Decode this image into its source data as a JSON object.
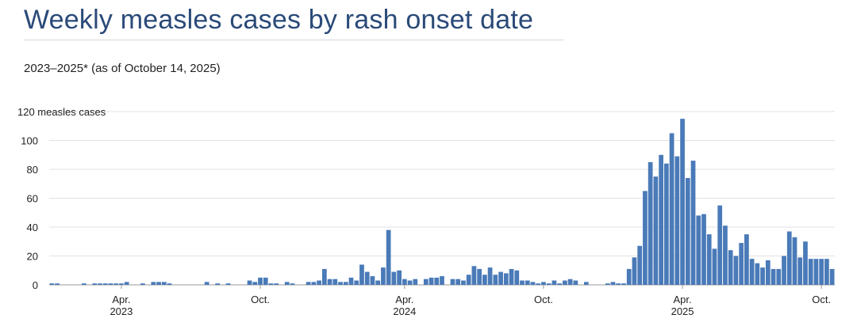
{
  "chart_data": {
    "type": "bar",
    "title": "Weekly measles cases by rash onset date",
    "subtitle": "2023–2025* (as of October 14, 2025)",
    "ylabel": "measles cases",
    "ylim": [
      0,
      120
    ],
    "yticks": [
      0,
      20,
      40,
      60,
      80,
      100,
      120
    ],
    "xticks": [
      {
        "label": "Apr.",
        "year": "2023",
        "week": 13
      },
      {
        "label": "Oct.",
        "year": "",
        "week": 39
      },
      {
        "label": "Apr.",
        "year": "2024",
        "week": 66
      },
      {
        "label": "Oct.",
        "year": "",
        "week": 92
      },
      {
        "label": "Apr.",
        "year": "2025",
        "week": 118
      },
      {
        "label": "Oct.",
        "year": "",
        "week": 144
      }
    ],
    "grid": true,
    "bar_color": "#4a7ab8",
    "values": [
      1,
      1,
      0,
      0,
      0,
      0,
      1,
      0,
      1,
      1,
      1,
      1,
      1,
      1,
      2,
      0,
      0,
      1,
      0,
      2,
      2,
      2,
      1,
      0,
      0,
      0,
      0,
      0,
      0,
      2,
      0,
      1,
      0,
      1,
      0,
      0,
      0,
      3,
      2,
      5,
      5,
      1,
      1,
      0,
      2,
      1,
      0,
      0,
      2,
      2,
      3,
      11,
      4,
      4,
      2,
      2,
      5,
      3,
      14,
      9,
      6,
      3,
      12,
      38,
      9,
      10,
      4,
      3,
      4,
      0,
      4,
      5,
      5,
      6,
      0,
      4,
      4,
      3,
      7,
      13,
      11,
      7,
      12,
      7,
      9,
      8,
      11,
      10,
      3,
      3,
      2,
      1,
      2,
      1,
      3,
      1,
      3,
      4,
      3,
      0,
      2,
      0,
      0,
      0,
      1,
      2,
      1,
      1,
      11,
      19,
      27,
      65,
      85,
      75,
      90,
      84,
      105,
      89,
      115,
      74,
      86,
      48,
      49,
      35,
      25,
      55,
      41,
      24,
      20,
      29,
      35,
      18,
      15,
      12,
      17,
      11,
      11,
      20,
      37,
      33,
      19,
      30,
      18,
      18,
      18,
      18,
      11
    ]
  }
}
